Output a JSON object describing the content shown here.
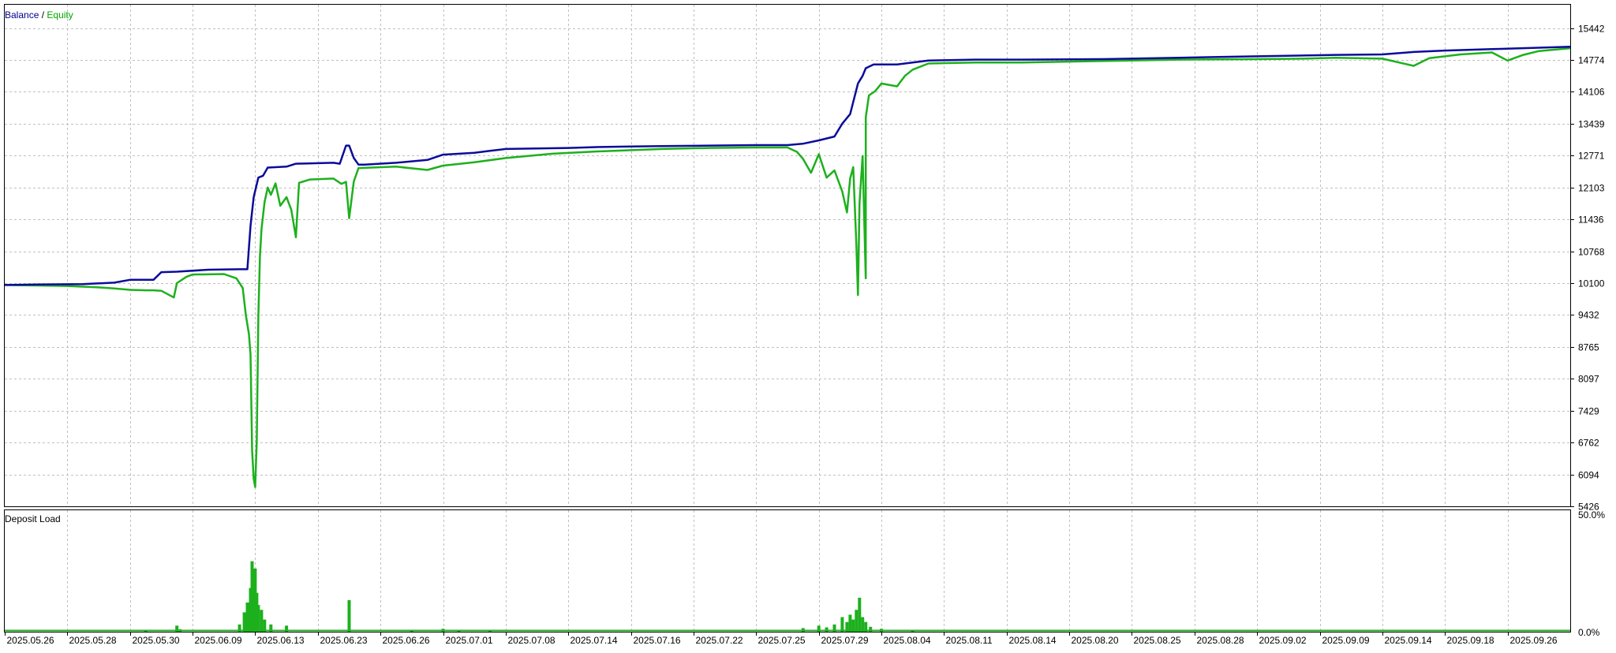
{
  "chart_data": [
    {
      "type": "line",
      "title_parts": [
        {
          "text": "Balance",
          "color": "#00008b"
        },
        {
          "text": " / ",
          "color": "#000000"
        },
        {
          "text": "Equity",
          "color": "#00a800"
        }
      ],
      "xlim": [
        0,
        100
      ],
      "ylim": [
        5426,
        15930
      ],
      "yticks": [
        "15442",
        "14774",
        "14106",
        "13439",
        "12771",
        "12103",
        "11436",
        "10768",
        "10100",
        "9432",
        "8765",
        "8097",
        "7429",
        "6762",
        "6094",
        "5426"
      ],
      "grid": true,
      "series": [
        {
          "name": "Balance",
          "color": "#0b0b9a",
          "points": [
            [
              0,
              10060
            ],
            [
              2,
              10070
            ],
            [
              5,
              10080
            ],
            [
              7,
              10110
            ],
            [
              8,
              10170
            ],
            [
              9.5,
              10170
            ],
            [
              10,
              10330
            ],
            [
              11,
              10340
            ],
            [
              13,
              10380
            ],
            [
              15,
              10390
            ],
            [
              15.5,
              10390
            ],
            [
              15.7,
              11300
            ],
            [
              15.9,
              11900
            ],
            [
              16.2,
              12310
            ],
            [
              16.5,
              12350
            ],
            [
              16.8,
              12520
            ],
            [
              18,
              12540
            ],
            [
              18.6,
              12600
            ],
            [
              21,
              12620
            ],
            [
              21.4,
              12600
            ],
            [
              21.8,
              12980
            ],
            [
              22,
              12980
            ],
            [
              22.3,
              12720
            ],
            [
              22.6,
              12580
            ],
            [
              23,
              12580
            ],
            [
              25,
              12620
            ],
            [
              27,
              12680
            ],
            [
              28,
              12790
            ],
            [
              30,
              12830
            ],
            [
              31,
              12870
            ],
            [
              32,
              12910
            ],
            [
              34,
              12920
            ],
            [
              36,
              12930
            ],
            [
              38,
              12950
            ],
            [
              40,
              12960
            ],
            [
              42,
              12970
            ],
            [
              45,
              12980
            ],
            [
              48,
              12990
            ],
            [
              50,
              12990
            ],
            [
              51,
              13020
            ],
            [
              52,
              13090
            ],
            [
              53,
              13170
            ],
            [
              53.5,
              13440
            ],
            [
              54,
              13640
            ],
            [
              54.5,
              14280
            ],
            [
              54.8,
              14440
            ],
            [
              55,
              14600
            ],
            [
              55.5,
              14680
            ],
            [
              57,
              14680
            ],
            [
              58,
              14720
            ],
            [
              59,
              14760
            ],
            [
              62,
              14780
            ],
            [
              65,
              14780
            ],
            [
              70,
              14790
            ],
            [
              75,
              14820
            ],
            [
              80,
              14850
            ],
            [
              85,
              14880
            ],
            [
              88,
              14890
            ],
            [
              90,
              14940
            ],
            [
              92,
              14970
            ],
            [
              95,
              15000
            ],
            [
              98,
              15030
            ],
            [
              100,
              15050
            ]
          ]
        },
        {
          "name": "Equity",
          "color": "#1db01d",
          "points": [
            [
              0,
              10060
            ],
            [
              2,
              10050
            ],
            [
              4,
              10040
            ],
            [
              6,
              10010
            ],
            [
              7,
              9990
            ],
            [
              8,
              9960
            ],
            [
              9,
              9950
            ],
            [
              9.5,
              9950
            ],
            [
              10,
              9940
            ],
            [
              10.8,
              9800
            ],
            [
              11,
              10100
            ],
            [
              11.6,
              10230
            ],
            [
              12,
              10280
            ],
            [
              14,
              10290
            ],
            [
              14.8,
              10200
            ],
            [
              15.2,
              10000
            ],
            [
              15.4,
              9440
            ],
            [
              15.6,
              9030
            ],
            [
              15.7,
              8600
            ],
            [
              15.8,
              6600
            ],
            [
              15.9,
              6000
            ],
            [
              16,
              5830
            ],
            [
              16.1,
              6800
            ],
            [
              16.2,
              9400
            ],
            [
              16.3,
              10650
            ],
            [
              16.4,
              11230
            ],
            [
              16.6,
              11800
            ],
            [
              16.8,
              12100
            ],
            [
              17,
              11950
            ],
            [
              17.3,
              12190
            ],
            [
              17.6,
              11720
            ],
            [
              18,
              11900
            ],
            [
              18.3,
              11640
            ],
            [
              18.5,
              11260
            ],
            [
              18.6,
              11060
            ],
            [
              18.8,
              12200
            ],
            [
              19.5,
              12270
            ],
            [
              21,
              12290
            ],
            [
              21.5,
              12180
            ],
            [
              21.8,
              12220
            ],
            [
              22,
              11460
            ],
            [
              22.3,
              12230
            ],
            [
              22.6,
              12510
            ],
            [
              25,
              12540
            ],
            [
              27,
              12470
            ],
            [
              28,
              12560
            ],
            [
              30,
              12630
            ],
            [
              32,
              12720
            ],
            [
              35,
              12810
            ],
            [
              38,
              12860
            ],
            [
              42,
              12910
            ],
            [
              45,
              12930
            ],
            [
              48,
              12940
            ],
            [
              50,
              12940
            ],
            [
              50.6,
              12850
            ],
            [
              51,
              12700
            ],
            [
              51.5,
              12410
            ],
            [
              52,
              12800
            ],
            [
              52.5,
              12310
            ],
            [
              53,
              12460
            ],
            [
              53.5,
              12020
            ],
            [
              53.8,
              11580
            ],
            [
              54,
              12290
            ],
            [
              54.2,
              12530
            ],
            [
              54.4,
              10900
            ],
            [
              54.5,
              9850
            ],
            [
              54.6,
              11780
            ],
            [
              54.8,
              12760
            ],
            [
              55,
              10200
            ],
            [
              55,
              13570
            ],
            [
              55.2,
              14030
            ],
            [
              55.6,
              14120
            ],
            [
              56,
              14280
            ],
            [
              57,
              14220
            ],
            [
              57.5,
              14440
            ],
            [
              58,
              14570
            ],
            [
              59,
              14700
            ],
            [
              62,
              14720
            ],
            [
              65,
              14720
            ],
            [
              70,
              14750
            ],
            [
              75,
              14780
            ],
            [
              80,
              14790
            ],
            [
              83,
              14800
            ],
            [
              85,
              14820
            ],
            [
              88,
              14800
            ],
            [
              90,
              14650
            ],
            [
              91,
              14810
            ],
            [
              93,
              14890
            ],
            [
              95,
              14930
            ],
            [
              96,
              14760
            ],
            [
              97,
              14880
            ],
            [
              98,
              14960
            ],
            [
              100,
              15020
            ]
          ]
        }
      ]
    },
    {
      "type": "bar",
      "title": "Deposit Load",
      "ylim": [
        0,
        50
      ],
      "ytick_labels": [
        "50.0%",
        "0.0%"
      ],
      "color": "#1db01d",
      "x_dates": [
        "2025.05.26",
        "2025.05.28",
        "2025.05.30",
        "2025.06.09",
        "2025.06.13",
        "2025.06.23",
        "2025.06.26",
        "2025.07.01",
        "2025.07.08",
        "2025.07.14",
        "2025.07.16",
        "2025.07.22",
        "2025.07.25",
        "2025.07.29",
        "2025.08.04",
        "2025.08.11",
        "2025.08.14",
        "2025.08.20",
        "2025.08.25",
        "2025.08.28",
        "2025.09.02",
        "2025.09.09",
        "2025.09.14",
        "2025.09.18",
        "2025.09.26"
      ],
      "bars": [
        [
          9,
          0.8
        ],
        [
          11,
          2.5
        ],
        [
          11.2,
          1.0
        ],
        [
          15,
          3
        ],
        [
          15.3,
          8
        ],
        [
          15.5,
          12
        ],
        [
          15.7,
          18
        ],
        [
          15.8,
          29
        ],
        [
          15.9,
          22
        ],
        [
          16,
          26
        ],
        [
          16.1,
          16
        ],
        [
          16.2,
          11
        ],
        [
          16.4,
          9
        ],
        [
          16.6,
          5
        ],
        [
          17,
          3
        ],
        [
          18,
          2.5
        ],
        [
          22,
          13
        ],
        [
          26,
          0.6
        ],
        [
          28,
          1.2
        ],
        [
          29,
          0.8
        ],
        [
          31,
          0.5
        ],
        [
          51,
          1.5
        ],
        [
          52,
          2.5
        ],
        [
          52.5,
          1.8
        ],
        [
          53,
          3
        ],
        [
          53.5,
          6
        ],
        [
          53.8,
          4
        ],
        [
          54,
          7
        ],
        [
          54.2,
          5
        ],
        [
          54.4,
          9
        ],
        [
          54.6,
          14
        ],
        [
          54.8,
          6
        ],
        [
          55,
          4
        ],
        [
          55.3,
          2
        ],
        [
          56,
          1.2
        ],
        [
          58,
          0.6
        ]
      ]
    }
  ]
}
